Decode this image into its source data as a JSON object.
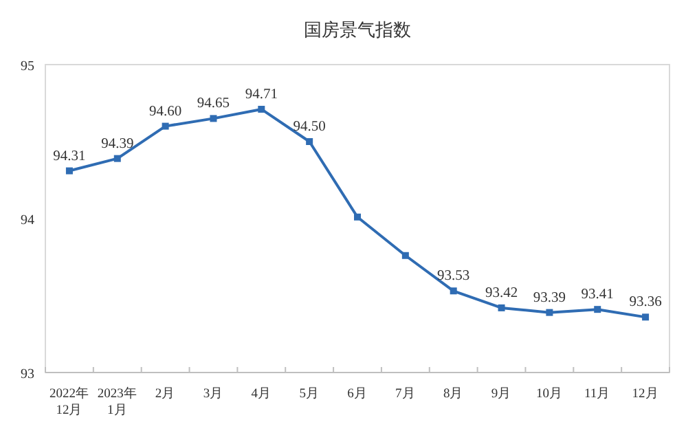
{
  "chart_data": {
    "type": "line",
    "title": "国房景气指数",
    "categories": [
      "2022年\n12月",
      "2023年\n1月",
      "2月",
      "3月",
      "4月",
      "5月",
      "6月",
      "7月",
      "8月",
      "9月",
      "10月",
      "11月",
      "12月"
    ],
    "series": [
      {
        "color": "#2f6cb3",
        "values": [
          94.31,
          94.39,
          94.6,
          94.65,
          94.71,
          94.5,
          94.01,
          93.76,
          93.53,
          93.42,
          93.39,
          93.41,
          93.36
        ],
        "value_labels": [
          "94.31",
          "94.39",
          "94.60",
          "94.65",
          "94.71",
          "94.50",
          null,
          null,
          "93.53",
          "93.42",
          "93.39",
          "93.41",
          "93.36"
        ]
      }
    ],
    "ylim": [
      93,
      95
    ],
    "yticks": [
      93,
      94,
      95
    ],
    "marker": "square",
    "grid": false
  }
}
